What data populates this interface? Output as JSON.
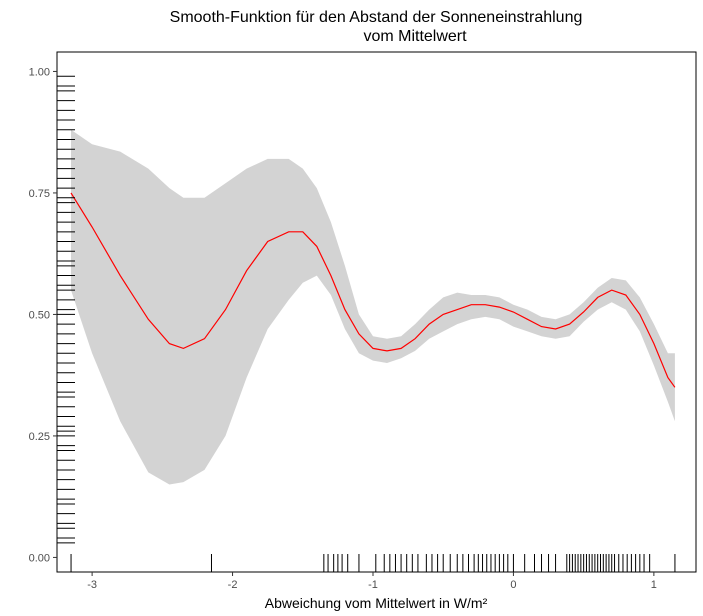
{
  "chart_data": {
    "type": "line",
    "title_line1": "Smooth-Funktion für den Abstand der Sonneneinstrahlung",
    "title_line2": "vom Mittelwert",
    "xlabel": "Abweichung vom Mittelwert in W/m²",
    "ylabel": "",
    "xlim": [
      -3.25,
      1.3
    ],
    "ylim": [
      -0.03,
      1.04
    ],
    "x_ticks": [
      -3,
      -2,
      -1,
      0,
      1
    ],
    "x_tick_labels": [
      "-3",
      "-2",
      "-1",
      "0",
      "1"
    ],
    "y_ticks": [
      0,
      0.25,
      0.5,
      0.75,
      1
    ],
    "y_tick_labels": [
      "0.00",
      "0.25",
      "0.50",
      "0.75",
      "1.00"
    ],
    "grid": false,
    "colors": {
      "fit": "#ff0000",
      "band": "#d3d3d3",
      "rug": "#000000",
      "frame": "#000000"
    },
    "series": [
      {
        "x": [
          -3.15,
          -3.0,
          -2.8,
          -2.6,
          -2.45,
          -2.35,
          -2.2,
          -2.05,
          -1.9,
          -1.75,
          -1.6,
          -1.5,
          -1.4,
          -1.3,
          -1.2,
          -1.1,
          -1.0,
          -0.9,
          -0.8,
          -0.7,
          -0.6,
          -0.5,
          -0.4,
          -0.3,
          -0.2,
          -0.1,
          0.0,
          0.1,
          0.2,
          0.3,
          0.4,
          0.5,
          0.6,
          0.7,
          0.8,
          0.9,
          1.0,
          1.1,
          1.15
        ],
        "y": [
          0.75,
          0.68,
          0.58,
          0.49,
          0.44,
          0.43,
          0.45,
          0.51,
          0.59,
          0.65,
          0.67,
          0.67,
          0.64,
          0.58,
          0.51,
          0.46,
          0.43,
          0.425,
          0.43,
          0.45,
          0.48,
          0.5,
          0.51,
          0.52,
          0.52,
          0.515,
          0.505,
          0.49,
          0.475,
          0.47,
          0.48,
          0.505,
          0.535,
          0.55,
          0.54,
          0.5,
          0.44,
          0.37,
          0.35
        ],
        "upper": [
          0.88,
          0.85,
          0.835,
          0.8,
          0.76,
          0.74,
          0.74,
          0.77,
          0.8,
          0.82,
          0.82,
          0.8,
          0.76,
          0.69,
          0.6,
          0.5,
          0.455,
          0.45,
          0.455,
          0.48,
          0.51,
          0.535,
          0.545,
          0.54,
          0.54,
          0.535,
          0.52,
          0.51,
          0.495,
          0.49,
          0.5,
          0.525,
          0.555,
          0.575,
          0.57,
          0.535,
          0.48,
          0.42,
          0.42
        ],
        "lower": [
          0.55,
          0.42,
          0.28,
          0.175,
          0.15,
          0.155,
          0.18,
          0.25,
          0.37,
          0.47,
          0.53,
          0.565,
          0.58,
          0.54,
          0.47,
          0.42,
          0.405,
          0.4,
          0.41,
          0.425,
          0.45,
          0.465,
          0.48,
          0.49,
          0.495,
          0.49,
          0.475,
          0.465,
          0.455,
          0.45,
          0.455,
          0.485,
          0.51,
          0.525,
          0.51,
          0.465,
          0.395,
          0.32,
          0.28
        ]
      }
    ],
    "rug_x": [
      -3.15,
      -2.15,
      -1.35,
      -1.32,
      -1.28,
      -1.25,
      -1.22,
      -1.18,
      -1.1,
      -0.98,
      -0.92,
      -0.88,
      -0.84,
      -0.8,
      -0.76,
      -0.72,
      -0.68,
      -0.62,
      -0.58,
      -0.54,
      -0.5,
      -0.45,
      -0.4,
      -0.36,
      -0.32,
      -0.28,
      -0.25,
      -0.22,
      -0.19,
      -0.16,
      -0.13,
      -0.1,
      -0.07,
      -0.04,
      0.0,
      0.08,
      0.15,
      0.2,
      0.25,
      0.3,
      0.38,
      0.4,
      0.42,
      0.44,
      0.46,
      0.48,
      0.5,
      0.52,
      0.54,
      0.56,
      0.58,
      0.6,
      0.62,
      0.64,
      0.66,
      0.68,
      0.7,
      0.72,
      0.75,
      0.78,
      0.81,
      0.84,
      0.87,
      0.9,
      0.93,
      0.97,
      1.15
    ],
    "rug_y": [
      0.03,
      0.04,
      0.06,
      0.07,
      0.09,
      0.11,
      0.12,
      0.14,
      0.16,
      0.18,
      0.2,
      0.22,
      0.23,
      0.25,
      0.26,
      0.27,
      0.29,
      0.31,
      0.33,
      0.34,
      0.36,
      0.38,
      0.4,
      0.42,
      0.44,
      0.46,
      0.48,
      0.5,
      0.51,
      0.53,
      0.55,
      0.56,
      0.58,
      0.6,
      0.61,
      0.63,
      0.65,
      0.67,
      0.69,
      0.71,
      0.73,
      0.74,
      0.76,
      0.78,
      0.8,
      0.82,
      0.84,
      0.86,
      0.88,
      0.9,
      0.92,
      0.94,
      0.96,
      0.97,
      0.99
    ]
  }
}
